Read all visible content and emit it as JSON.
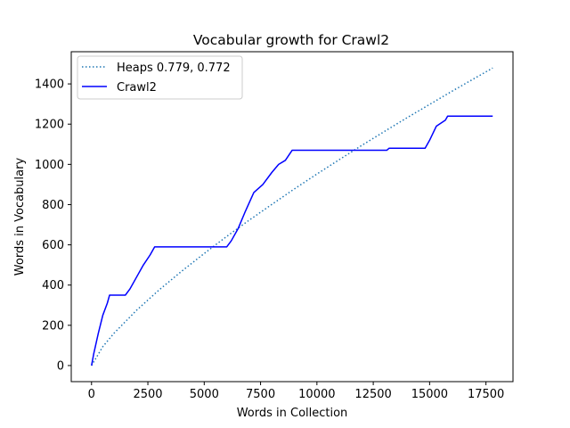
{
  "chart_data": {
    "type": "line",
    "title": "Vocabular growth for Crawl2",
    "xlabel": "Words in Collection",
    "ylabel": "Words in Vocabulary",
    "xlim": [
      -900,
      18700
    ],
    "ylim": [
      -80,
      1560
    ],
    "xticks": [
      0,
      2500,
      5000,
      7500,
      10000,
      12500,
      15000,
      17500
    ],
    "xtick_labels": [
      "0",
      "2500",
      "5000",
      "7500",
      "10000",
      "12500",
      "15000",
      "17500"
    ],
    "yticks": [
      0,
      200,
      400,
      600,
      800,
      1000,
      1200,
      1400
    ],
    "ytick_labels": [
      "0",
      "200",
      "400",
      "600",
      "800",
      "1000",
      "1200",
      "1400"
    ],
    "grid": false,
    "legend_position": "upper-left",
    "series": [
      {
        "name": "Heaps 0.779, 0.772",
        "style": "dotted",
        "color": "#1f77b4",
        "heaps_k": 0.779,
        "heaps_beta": 0.772,
        "x": [
          0,
          500,
          1000,
          2000,
          3000,
          4000,
          5000,
          6000,
          7000,
          8000,
          9000,
          10000,
          11000,
          12000,
          13000,
          14000,
          15000,
          16000,
          17000,
          17800
        ],
        "values": [
          0,
          94,
          161,
          275,
          376,
          469,
          557,
          642,
          723,
          801,
          878,
          952,
          1024,
          1095,
          1164,
          1232,
          1298,
          1364,
          1428,
          1479
        ]
      },
      {
        "name": "Crawl2",
        "style": "solid",
        "color": "#0000ff",
        "x": [
          0,
          100,
          300,
          500,
          700,
          800,
          1500,
          1700,
          2000,
          2300,
          2600,
          2800,
          6000,
          6200,
          6500,
          6800,
          7200,
          7600,
          8000,
          8300,
          8600,
          8900,
          13100,
          13200,
          14800,
          15000,
          15300,
          15700,
          15800,
          17800
        ],
        "values": [
          0,
          60,
          160,
          250,
          310,
          350,
          350,
          380,
          440,
          500,
          550,
          590,
          590,
          620,
          680,
          760,
          860,
          900,
          960,
          1000,
          1020,
          1070,
          1070,
          1080,
          1080,
          1120,
          1190,
          1220,
          1240,
          1240
        ]
      }
    ]
  }
}
